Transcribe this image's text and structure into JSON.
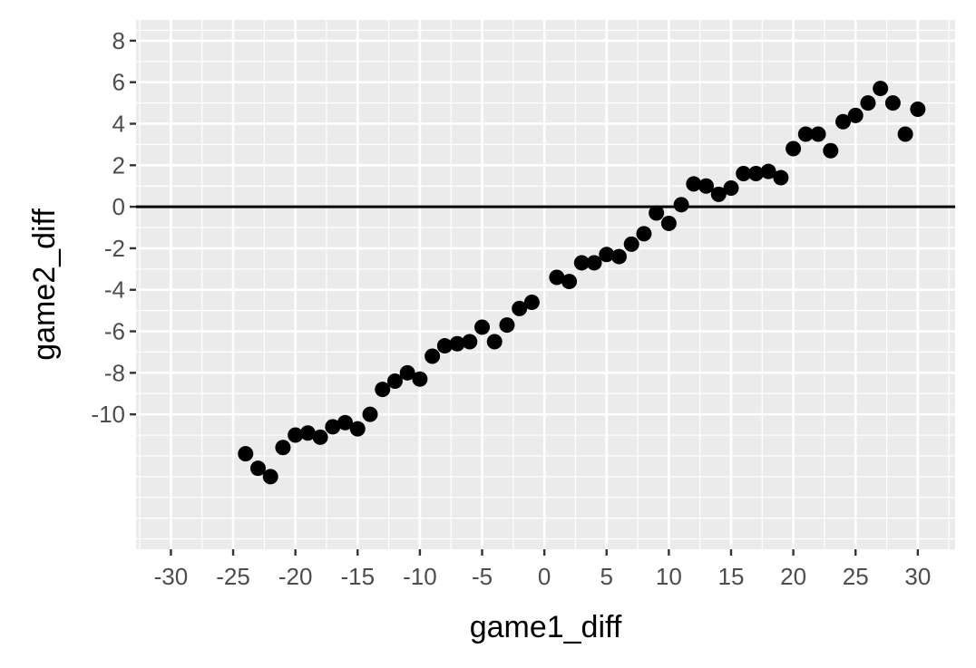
{
  "chart_data": {
    "type": "scatter",
    "title": "",
    "xlabel": "game1_diff",
    "ylabel": "game2_diff",
    "xlim": [
      -32.8,
      33.0
    ],
    "ylim": [
      -16.5,
      9.0
    ],
    "x_ticks": [
      -30,
      -25,
      -20,
      -15,
      -10,
      -5,
      0,
      5,
      10,
      15,
      20,
      25,
      30
    ],
    "x_tick_labels": [
      "-30",
      "-25",
      "-20",
      "-15",
      "-10",
      "-5",
      "0",
      "5",
      "10",
      "15",
      "20",
      "25",
      "30"
    ],
    "y_ticks": [
      -10,
      -8,
      -6,
      -4,
      -2,
      0,
      2,
      4,
      6,
      8
    ],
    "y_tick_labels": [
      "-10",
      "-8",
      "-6",
      "-4",
      "-2",
      "0",
      "2",
      "4",
      "6",
      "8"
    ],
    "minor_x": [
      -32.5,
      -27.5,
      -22.5,
      -17.5,
      -12.5,
      -7.5,
      -2.5,
      2.5,
      7.5,
      12.5,
      17.5,
      22.5,
      27.5,
      32.5
    ],
    "minor_y": [
      -16,
      -15,
      -14,
      -13,
      -12,
      -11,
      -9,
      -7,
      -5,
      -3,
      -1,
      1,
      3,
      5,
      7,
      8.5
    ],
    "hline": 0,
    "grid": true,
    "background": "#ebebeb",
    "grid_color": "#ffffff",
    "point_color": "#000000",
    "series": [
      {
        "x": [
          -24,
          -23,
          -22,
          -21,
          -20,
          -19,
          -18,
          -17,
          -16,
          -15,
          -14,
          -13,
          -12,
          -11,
          -10,
          -9,
          -8,
          -7,
          -6,
          -5,
          -4,
          -3,
          -2,
          -1,
          1,
          2,
          3,
          4,
          5,
          6,
          7,
          8,
          9,
          10,
          11,
          12,
          13,
          14,
          15,
          16,
          17,
          18,
          19,
          20,
          21,
          22,
          23,
          24,
          25,
          26,
          27,
          28,
          29,
          30
        ],
        "y": [
          -11.9,
          -12.6,
          -13.0,
          -11.6,
          -11.0,
          -10.9,
          -11.1,
          -10.6,
          -10.4,
          -10.7,
          -10.0,
          -8.8,
          -8.4,
          -8.0,
          -8.3,
          -7.2,
          -6.7,
          -6.6,
          -6.5,
          -5.8,
          -6.5,
          -5.7,
          -4.9,
          -4.6,
          -3.4,
          -3.6,
          -2.7,
          -2.7,
          -2.3,
          -2.4,
          -1.8,
          -1.3,
          -0.3,
          -0.8,
          0.1,
          1.1,
          1.0,
          0.6,
          0.9,
          1.6,
          1.6,
          1.7,
          1.4,
          2.8,
          3.5,
          3.5,
          2.7,
          4.1,
          4.4,
          5.0,
          5.7,
          5.0,
          3.5,
          4.7
        ]
      }
    ]
  }
}
